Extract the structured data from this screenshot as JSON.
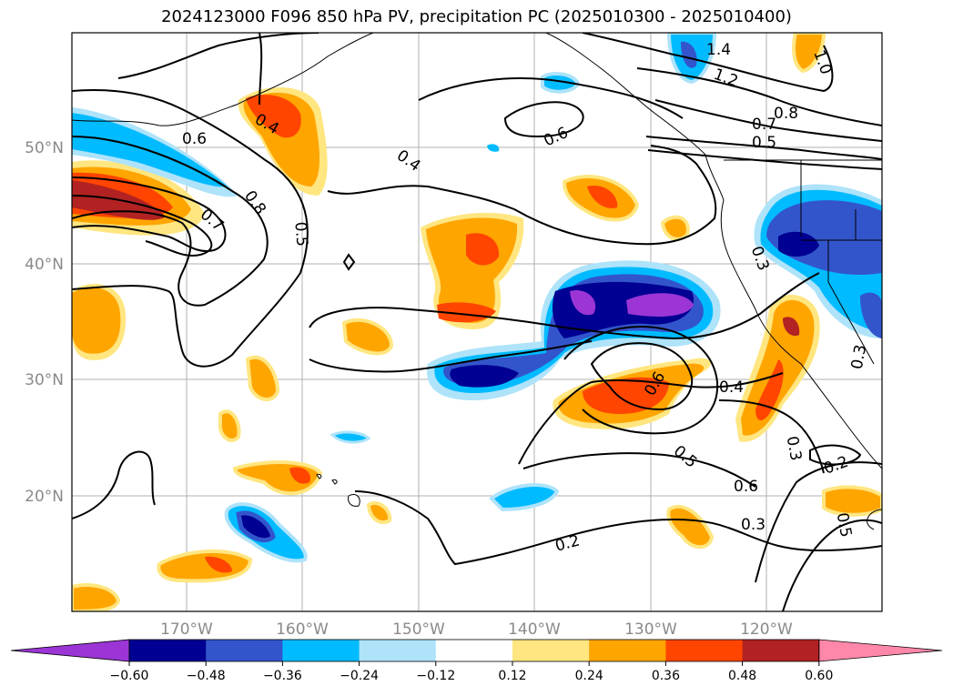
{
  "title": "2024123000 F096 850 hPa PV, precipitation PC (2025010300 - 2025010400)",
  "lon_ticks": [
    "170°W",
    "160°W",
    "150°W",
    "140°W",
    "130°W",
    "120°W"
  ],
  "lat_ticks": [
    "50°N",
    "40°N",
    "30°N",
    "20°N"
  ],
  "contour_labels": [
    "0.6",
    "0.4",
    "0.8",
    "0.7",
    "0.5",
    "0.4",
    "0.6",
    "1.4",
    "1.2",
    "1.0",
    "0.8",
    "0.7",
    "0.5",
    "0.3",
    "0.4",
    "0.6",
    "0.5",
    "0.6",
    "0.3",
    "0.2",
    "0.3",
    "0.2",
    "0.5",
    "0.3"
  ],
  "colorbar": {
    "ticks": [
      "−0.60",
      "−0.48",
      "−0.36",
      "−0.24",
      "−0.12",
      "0.12",
      "0.24",
      "0.36",
      "0.48",
      "0.60"
    ],
    "colors": [
      "#9b35d6",
      "#000092",
      "#3355cc",
      "#00bbff",
      "#aee3fa",
      "#ffffff",
      "#ffe680",
      "#ffa500",
      "#ff4500",
      "#b22222",
      "#ff88aa"
    ]
  }
}
